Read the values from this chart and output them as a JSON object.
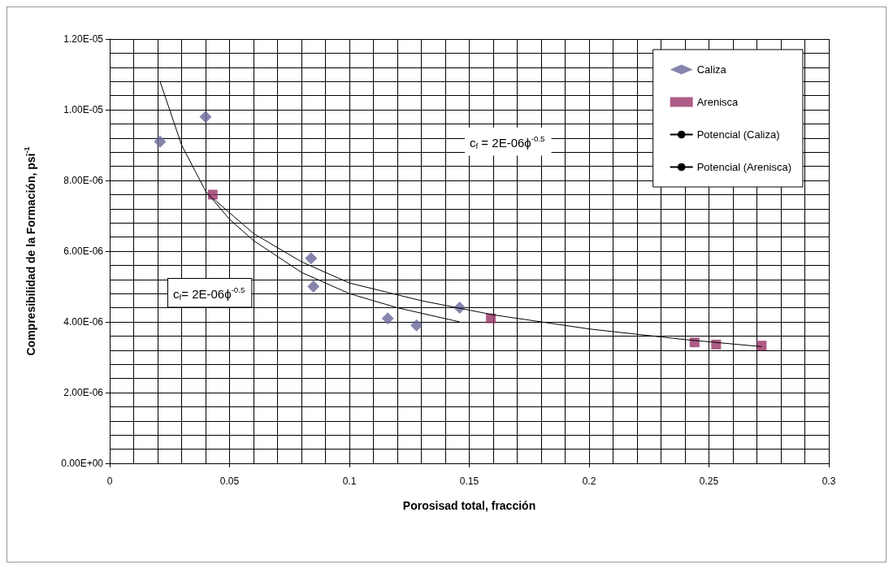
{
  "chart_data": {
    "type": "scatter",
    "xlabel": "Porosisad total, fracción",
    "ylabel": "Compresibilidad de la Formación, psi$^{-1}$",
    "xlim": [
      0,
      0.3
    ],
    "xticks": [
      0,
      0.05,
      0.1,
      0.15,
      0.2,
      0.25,
      0.3
    ],
    "ylim": [
      0,
      1.2e-05
    ],
    "yticks": [
      {
        "value": 0,
        "label": "0.00E+00"
      },
      {
        "value": 2e-06,
        "label": "2.00E-06"
      },
      {
        "value": 4e-06,
        "label": "4.00E-06"
      },
      {
        "value": 6e-06,
        "label": "6.00E-06"
      },
      {
        "value": 8e-06,
        "label": "8.00E-06"
      },
      {
        "value": 1e-05,
        "label": "1.00E-05"
      },
      {
        "value": 1.2e-05,
        "label": "1.20E-05"
      }
    ],
    "grid": true,
    "legend": "top right",
    "series": [
      {
        "name": "Caliza",
        "marker": "diamond",
        "color": "#666699",
        "x": [
          0.021,
          0.04,
          0.084,
          0.085,
          0.116,
          0.128,
          0.146
        ],
        "values": [
          9.1e-06,
          9.8e-06,
          5.8e-06,
          5e-06,
          4.1e-06,
          3.9e-06,
          4.4e-06
        ]
      },
      {
        "name": "Arenisca",
        "marker": "square",
        "color": "#993366",
        "x": [
          0.043,
          0.159,
          0.244,
          0.253,
          0.272
        ],
        "values": [
          7.6e-06,
          4.1e-06,
          3.42e-06,
          3.36e-06,
          3.33e-06
        ]
      },
      {
        "name": "Potencial (Caliza)",
        "type": "line",
        "marker": "none",
        "color": "#000000",
        "x": [
          0.021,
          0.03,
          0.04,
          0.05,
          0.06,
          0.08,
          0.1,
          0.12,
          0.146
        ],
        "values": [
          1.08e-05,
          9e-06,
          7.7e-06,
          6.9e-06,
          6.3e-06,
          5.4e-06,
          4.8e-06,
          4.4e-06,
          4e-06
        ]
      },
      {
        "name": "Potencial (Arenisca)",
        "type": "line",
        "marker": "none",
        "color": "#000000",
        "x": [
          0.043,
          0.06,
          0.08,
          0.1,
          0.13,
          0.16,
          0.2,
          0.24,
          0.272
        ],
        "values": [
          7.5e-06,
          6.5e-06,
          5.7e-06,
          5.1e-06,
          4.6e-06,
          4.2e-06,
          3.8e-06,
          3.5e-06,
          3.3e-06
        ]
      }
    ],
    "annotations": [
      "c$_{f}$ = 2E-06ϕ$^{-0.5}$",
      "c$_{f}$= 2E-06ϕ$^{-0.5}$"
    ]
  }
}
